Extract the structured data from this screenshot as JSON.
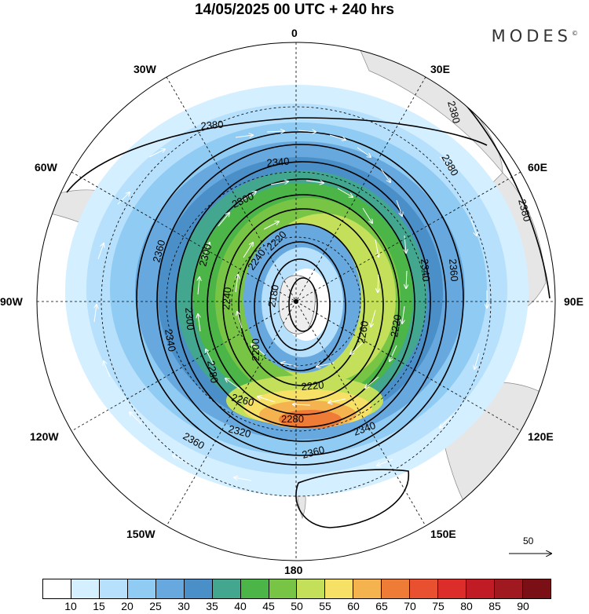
{
  "header": {
    "title": "14/05/2025  00 UTC  + 240 hrs",
    "brand": "MODES",
    "brand_mark": "©"
  },
  "map": {
    "projection": "polar stereographic (south pole centered)",
    "longitude_labels": {
      "top": "0",
      "bottom": "180",
      "left": "90W",
      "right": "90E",
      "lon30w": "30W",
      "lon30e": "30E",
      "lon60w": "60W",
      "lon60e": "60E",
      "lon120w": "120W",
      "lon120e": "120E",
      "lon150w": "150W",
      "lon150e": "150E"
    },
    "contour_labels": [
      "2380",
      "2380",
      "2380",
      "2380",
      "2360",
      "2360",
      "2360",
      "2360",
      "2340",
      "2340",
      "2340",
      "2340",
      "2320",
      "2300",
      "2300",
      "2300",
      "2280",
      "2280",
      "2260",
      "2260",
      "2240",
      "2240",
      "2220",
      "2220",
      "2220",
      "2200",
      "2180"
    ],
    "vector_reference": {
      "value": "50"
    }
  },
  "colorbar": {
    "ticks": [
      "10",
      "15",
      "20",
      "25",
      "30",
      "35",
      "40",
      "45",
      "50",
      "55",
      "60",
      "65",
      "70",
      "75",
      "80",
      "85",
      "90"
    ],
    "colors": [
      "#ffffff",
      "#d4efff",
      "#b6e0fb",
      "#8fcbf2",
      "#67a9de",
      "#4a8fc7",
      "#43a68f",
      "#4bb548",
      "#78c546",
      "#c4e05a",
      "#f7e066",
      "#f5b34f",
      "#ee7b36",
      "#e8502f",
      "#dc2d2b",
      "#c11c26",
      "#a01820",
      "#7a1016"
    ]
  }
}
